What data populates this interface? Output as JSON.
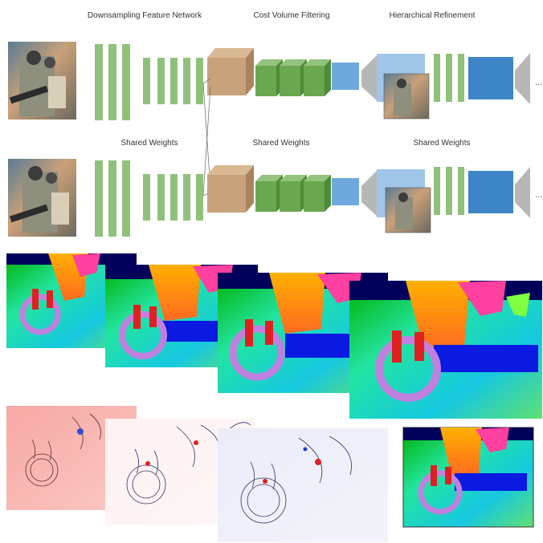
{
  "labels": {
    "downsampling": "Downsampling Feature Network",
    "cost_volume": "Cost Volume Filtering",
    "hierarchical": "Hierarchical Refinement",
    "shared_weights_1": "Shared Weights",
    "shared_weights_2": "Shared Weights",
    "shared_weights_3": "Shared Weights",
    "ellipsis_top": "...",
    "ellipsis_bottom": "..."
  },
  "colors": {
    "green_layer": "#8fc17a",
    "green_block": "#6aa84f",
    "cost_volume": "#c8a27a",
    "light_blue": "#6fa8dc",
    "dark_blue": "#3d85c6",
    "gray_funnel": "#b7b7b7"
  }
}
